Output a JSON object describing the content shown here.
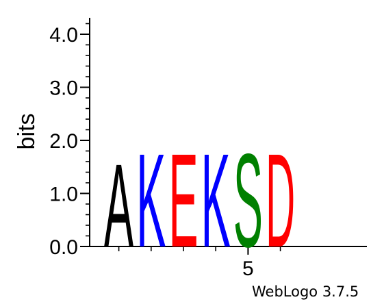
{
  "chart_data": {
    "type": "sequence-logo",
    "ylabel": "bits",
    "ylim": [
      0,
      4.3
    ],
    "yticks": [
      {
        "value": 0.0,
        "label": "0.0"
      },
      {
        "value": 1.0,
        "label": "1.0"
      },
      {
        "value": 2.0,
        "label": "2.0"
      },
      {
        "value": 3.0,
        "label": "3.0"
      },
      {
        "value": 4.0,
        "label": "4.0"
      }
    ],
    "xticks": [
      {
        "position": 5,
        "label": "5"
      }
    ],
    "positions": [
      {
        "position": 1,
        "letter": "A",
        "height": 1.6,
        "color": "#000000"
      },
      {
        "position": 2,
        "letter": "K",
        "height": 1.8,
        "color": "#0000ff"
      },
      {
        "position": 3,
        "letter": "E",
        "height": 1.8,
        "color": "#ff0000"
      },
      {
        "position": 4,
        "letter": "K",
        "height": 1.8,
        "color": "#0000ff"
      },
      {
        "position": 5,
        "letter": "S",
        "height": 1.8,
        "color": "#008000"
      },
      {
        "position": 6,
        "letter": "D",
        "height": 1.8,
        "color": "#ff0000"
      }
    ]
  },
  "credit": "WebLogo 3.7.5"
}
